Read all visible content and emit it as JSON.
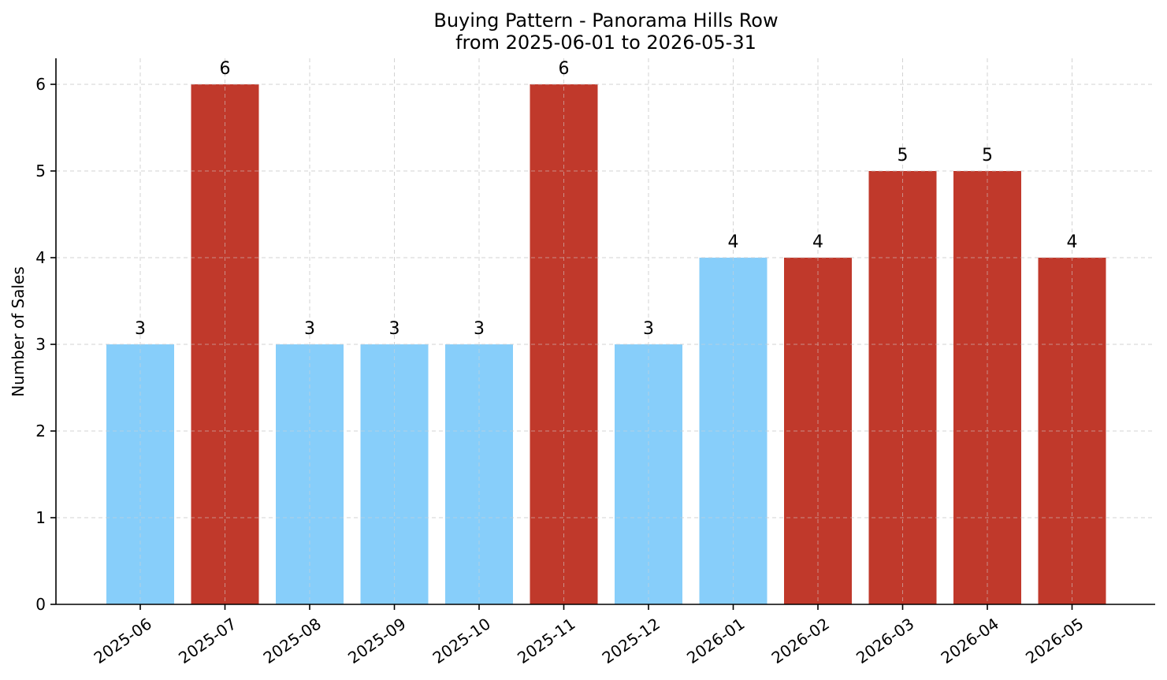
{
  "chart_data": {
    "type": "bar",
    "title_line1": "Buying Pattern - Panorama Hills Row",
    "title_line2": "from 2025-06-01 to 2026-05-31",
    "xlabel": "",
    "ylabel": "Number of Sales",
    "categories": [
      "2025-06",
      "2025-07",
      "2025-08",
      "2025-09",
      "2025-10",
      "2025-11",
      "2025-12",
      "2026-01",
      "2026-02",
      "2026-03",
      "2026-04",
      "2026-05"
    ],
    "values": [
      3,
      6,
      3,
      3,
      3,
      6,
      3,
      4,
      4,
      5,
      5,
      4
    ],
    "bar_colors": [
      "#87CEFA",
      "#C0392B",
      "#87CEFA",
      "#87CEFA",
      "#87CEFA",
      "#C0392B",
      "#87CEFA",
      "#87CEFA",
      "#C0392B",
      "#C0392B",
      "#C0392B",
      "#C0392B"
    ],
    "yticks": [
      0,
      1,
      2,
      3,
      4,
      5,
      6
    ],
    "ylim": [
      0,
      6.3
    ],
    "grid": true,
    "data_labels": true
  }
}
